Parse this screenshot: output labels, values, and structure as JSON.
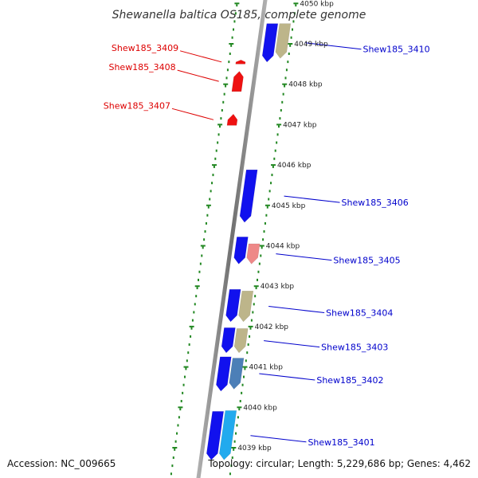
{
  "title": "Shewanella baltica OS185, complete genome",
  "footer": {
    "accession": "Accession: NC_009665",
    "topology": "Topology: circular; Length: 5,229,686 bp; Genes: 4,462"
  },
  "colors": {
    "reverse_label": "#dd0000",
    "forward_label": "#0000cc",
    "tick": "#228822",
    "backbone": "#808080"
  },
  "chart_data": {
    "type": "genome-map",
    "units": "kbp",
    "ticks": [
      {
        "kbp": 4050,
        "label": "4050 kbp"
      },
      {
        "kbp": 4049,
        "label": "4049 kbp"
      },
      {
        "kbp": 4048,
        "label": "4048 kbp"
      },
      {
        "kbp": 4047,
        "label": "4047 kbp"
      },
      {
        "kbp": 4046,
        "label": "4046 kbp"
      },
      {
        "kbp": 4045,
        "label": "4045 kbp"
      },
      {
        "kbp": 4044,
        "label": "4044 kbp"
      },
      {
        "kbp": 4043,
        "label": "4043 kbp"
      },
      {
        "kbp": 4042,
        "label": "4042 kbp"
      },
      {
        "kbp": 4041,
        "label": "4041 kbp"
      },
      {
        "kbp": 4040,
        "label": "4040 kbp"
      },
      {
        "kbp": 4039,
        "label": "4039 kbp"
      }
    ],
    "reverse_genes": [
      {
        "name": "Shew185_3409",
        "start": 4048.6,
        "end": 4048.5,
        "color": "#ee1111"
      },
      {
        "name": "Shew185_3408",
        "start": 4048.32,
        "end": 4047.82,
        "color": "#ee1111"
      },
      {
        "name": "Shew185_3407",
        "start": 4047.26,
        "end": 4046.98,
        "color": "#ee1111"
      }
    ],
    "forward_features": [
      {
        "track": 1,
        "start": 4049.5,
        "end": 4048.55,
        "color": "#1111ee",
        "label": "Shew185_3410"
      },
      {
        "track": 2,
        "start": 4049.5,
        "end": 4048.64,
        "color": "#bdb58a",
        "label": ""
      },
      {
        "track": 1,
        "start": 4045.88,
        "end": 4044.58,
        "color": "#1111ee",
        "label": "Shew185_3406"
      },
      {
        "track": 1,
        "start": 4044.22,
        "end": 4043.55,
        "color": "#1111ee",
        "label": ""
      },
      {
        "track": 2,
        "start": 4044.05,
        "end": 4043.55,
        "color": "#ee8888",
        "label": "Shew185_3405"
      },
      {
        "track": 1,
        "start": 4042.92,
        "end": 4042.12,
        "color": "#1111ee",
        "label": ""
      },
      {
        "track": 2,
        "start": 4042.88,
        "end": 4042.12,
        "color": "#bdb58a",
        "label": "Shew185_3404"
      },
      {
        "track": 1,
        "start": 4041.97,
        "end": 4041.35,
        "color": "#1111ee",
        "label": ""
      },
      {
        "track": 2,
        "start": 4041.95,
        "end": 4041.35,
        "color": "#bdb58a",
        "label": "Shew185_3403"
      },
      {
        "track": 1,
        "start": 4041.25,
        "end": 4040.4,
        "color": "#1111ee",
        "label": ""
      },
      {
        "track": 2,
        "start": 4041.22,
        "end": 4040.45,
        "color": "#4c7fb7",
        "label": "Shew185_3402"
      },
      {
        "track": 1,
        "start": 4039.9,
        "end": 4038.7,
        "color": "#1111ee",
        "label": "Shew185_3401"
      },
      {
        "track": 2,
        "start": 4039.92,
        "end": 4038.7,
        "color": "#22aaee",
        "label": ""
      }
    ]
  }
}
